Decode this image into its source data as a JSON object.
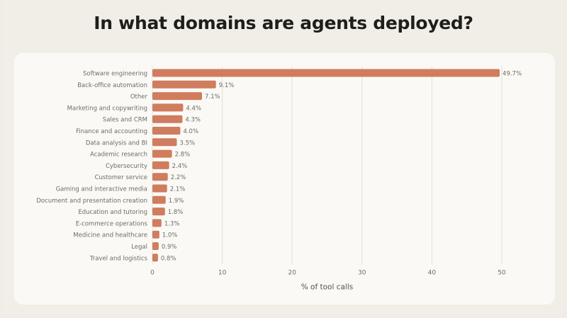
{
  "title": "In what domains are agents deployed?",
  "chart_data": {
    "type": "bar",
    "orientation": "horizontal",
    "title": "In what domains are agents deployed?",
    "xlabel": "% of tool calls",
    "ylabel": "",
    "xlim": [
      0,
      50
    ],
    "xticks": [
      0,
      10,
      20,
      30,
      40,
      50
    ],
    "grid": true,
    "categories": [
      "Software engineering",
      "Back-office automation",
      "Other",
      "Marketing and copywriting",
      "Sales and CRM",
      "Finance and accounting",
      "Data analysis and BI",
      "Academic research",
      "Cybersecurity",
      "Customer service",
      "Gaming and interactive media",
      "Document and presentation creation",
      "Education and tutoring",
      "E-commerce operations",
      "Medicine and healthcare",
      "Legal",
      "Travel and logistics"
    ],
    "values": [
      49.7,
      9.1,
      7.1,
      4.4,
      4.3,
      4.0,
      3.5,
      2.8,
      2.4,
      2.2,
      2.1,
      1.9,
      1.8,
      1.3,
      1.0,
      0.9,
      0.8
    ],
    "data_labels": [
      "49.7%",
      "9.1%",
      "7.1%",
      "4.4%",
      "4.3%",
      "4.0%",
      "3.5%",
      "2.8%",
      "2.4%",
      "2.2%",
      "2.1%",
      "1.9%",
      "1.8%",
      "1.3%",
      "1.0%",
      "0.9%",
      "0.8%"
    ],
    "colors": {
      "bar": "#d07c5e",
      "grid": "#e2dfd7",
      "text": "#6e6c66"
    }
  }
}
